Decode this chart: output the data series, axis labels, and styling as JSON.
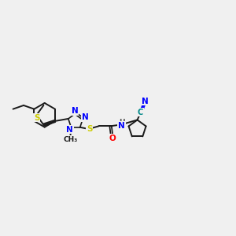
{
  "bg_color": "#f0f0f0",
  "bond_color": "#1a1a1a",
  "bond_width": 1.4,
  "atom_colors": {
    "N": "#0000ff",
    "S": "#cccc00",
    "O": "#ff0000",
    "C_cyan": "#008888",
    "H": "#555555",
    "C": "#1a1a1a"
  },
  "font_size": 7.5,
  "figsize": [
    3.0,
    3.0
  ],
  "dpi": 100
}
